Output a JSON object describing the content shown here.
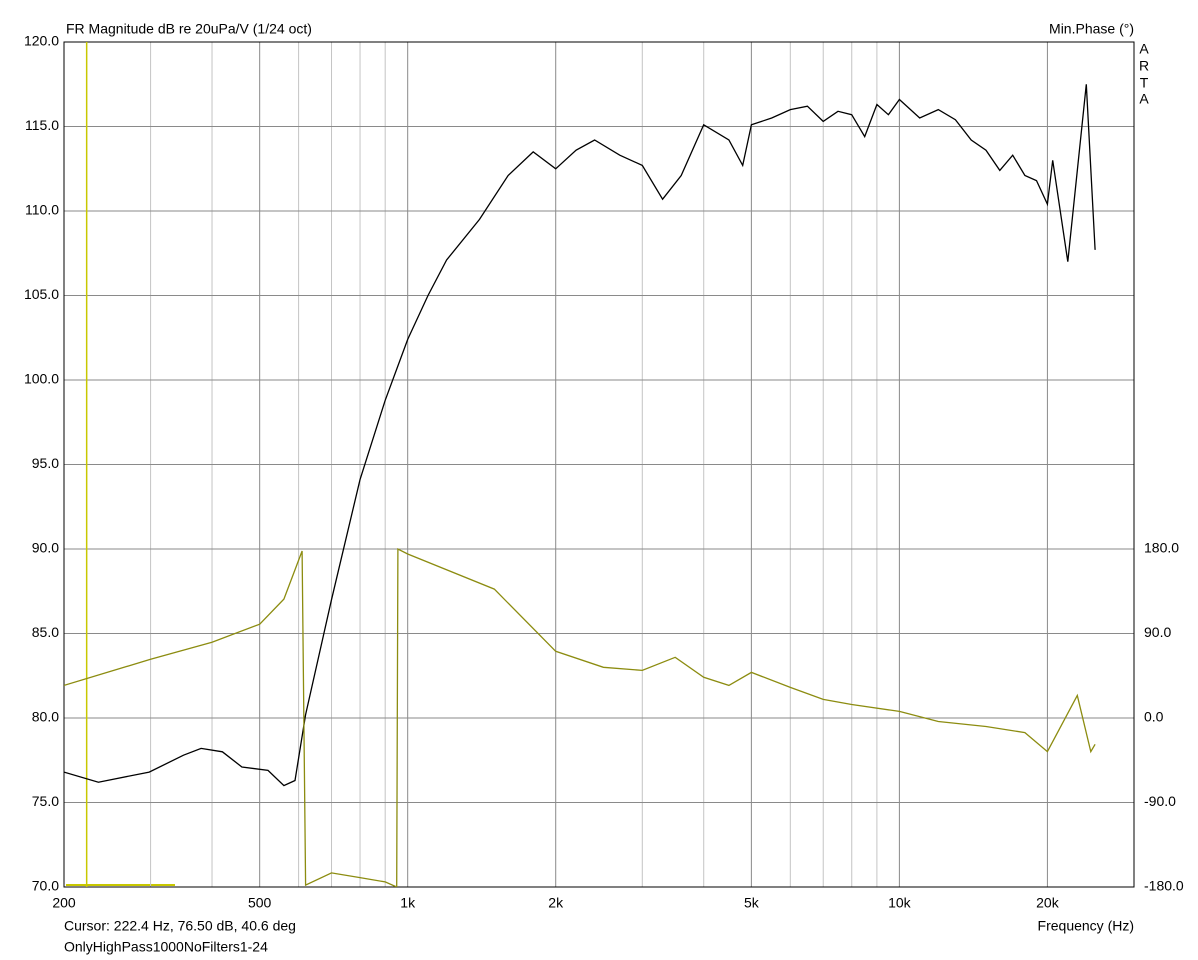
{
  "chart_data": {
    "type": "line",
    "title": "FR Magnitude dB re 20uPa/V (1/24 oct)",
    "y2_label": "Min.Phase (°)",
    "brand": [
      "A",
      "R",
      "T",
      "A"
    ],
    "x_label": "Frequency (Hz)",
    "cursor": {
      "x": 222.4,
      "label": "Cursor: 222.4 Hz, 76.50 dB, 40.6 deg",
      "color": "#c8c800"
    },
    "file_name": "OnlyHighPass1000NoFilters1-24",
    "xscale": "log",
    "grid": true,
    "xlim": [
      200,
      30000
    ],
    "xticks": [
      200,
      500,
      {
        "value": 1000,
        "label": "1k"
      },
      {
        "value": 2000,
        "label": "2k"
      },
      {
        "value": 5000,
        "label": "5k"
      },
      {
        "value": 10000,
        "label": "10k"
      },
      {
        "value": 20000,
        "label": "20k"
      }
    ],
    "xgrid_minor": [
      300,
      400,
      600,
      700,
      800,
      900,
      3000,
      4000,
      6000,
      7000,
      8000,
      9000
    ],
    "ylim": [
      70,
      120
    ],
    "yticks": [
      {
        "value": 70,
        "label": "70.0"
      },
      {
        "value": 75,
        "label": "75.0"
      },
      {
        "value": 80,
        "label": "80.0"
      },
      {
        "value": 85,
        "label": "85.0"
      },
      {
        "value": 90,
        "label": "90.0"
      },
      {
        "value": 95,
        "label": "95.0"
      },
      {
        "value": 100,
        "label": "100.0"
      },
      {
        "value": 105,
        "label": "105.0"
      },
      {
        "value": 110,
        "label": "110.0"
      },
      {
        "value": 115,
        "label": "115.0"
      },
      {
        "value": 120,
        "label": "120.0"
      }
    ],
    "y2lim": [
      -180,
      720
    ],
    "y2ticks": [
      {
        "value": -180,
        "label": "-180.0"
      },
      {
        "value": -90,
        "label": "-90.0"
      },
      {
        "value": 0,
        "label": "0.0"
      },
      {
        "value": 90,
        "label": "90.0"
      },
      {
        "value": 180,
        "label": "180.0"
      }
    ],
    "series": [
      {
        "color": "#000000",
        "x": [
          200,
          235,
          298,
          350,
          380,
          420,
          460,
          520,
          560,
          590,
          620,
          700,
          800,
          900,
          1000,
          1100,
          1200,
          1400,
          1600,
          1800,
          2000,
          2200,
          2400,
          2700,
          3000,
          3300,
          3600,
          4000,
          4500,
          4800,
          5000,
          5500,
          6000,
          6500,
          7000,
          7500,
          8000,
          8500,
          9000,
          9500,
          10000,
          11000,
          12000,
          13000,
          14000,
          15000,
          16000,
          17000,
          18000,
          19000,
          20000,
          20500,
          22000,
          24000,
          25000
        ],
        "values": [
          76.8,
          76.2,
          76.8,
          77.8,
          78.2,
          78.0,
          77.1,
          76.9,
          76.0,
          76.3,
          80.2,
          87.0,
          94.1,
          98.8,
          102.4,
          105.0,
          107.1,
          109.5,
          112.1,
          113.5,
          112.5,
          113.6,
          114.2,
          113.3,
          112.7,
          110.7,
          112.1,
          115.1,
          114.2,
          112.7,
          115.1,
          115.5,
          116.0,
          116.2,
          115.3,
          115.9,
          115.7,
          114.4,
          116.3,
          115.7,
          116.6,
          115.5,
          116.0,
          115.4,
          114.2,
          113.6,
          112.4,
          113.3,
          112.1,
          111.8,
          110.4,
          113.0,
          107.0,
          117.5,
          107.7
        ]
      },
      {
        "color": "#8c8c10",
        "axis": "y2",
        "x": [
          200,
          300,
          400,
          500,
          560,
          610,
          620,
          700,
          800,
          900,
          950,
          955,
          1000,
          1500,
          2000,
          2500,
          3000,
          3500,
          4000,
          4500,
          5000,
          6000,
          7000,
          8000,
          10000,
          12000,
          15000,
          18000,
          20000,
          23000,
          24500,
          25000
        ],
        "values": [
          34.7,
          62.5,
          80.7,
          99.9,
          126.6,
          177.9,
          -178,
          -165,
          -170,
          -174.6,
          -180,
          180,
          174.7,
          137.3,
          71,
          54,
          50.7,
          64.6,
          43.3,
          34.7,
          48.6,
          32.6,
          19.8,
          14.4,
          7,
          -3.7,
          -9,
          -15.5,
          -35.8,
          24.0,
          -35.8,
          -28
        ]
      }
    ]
  }
}
